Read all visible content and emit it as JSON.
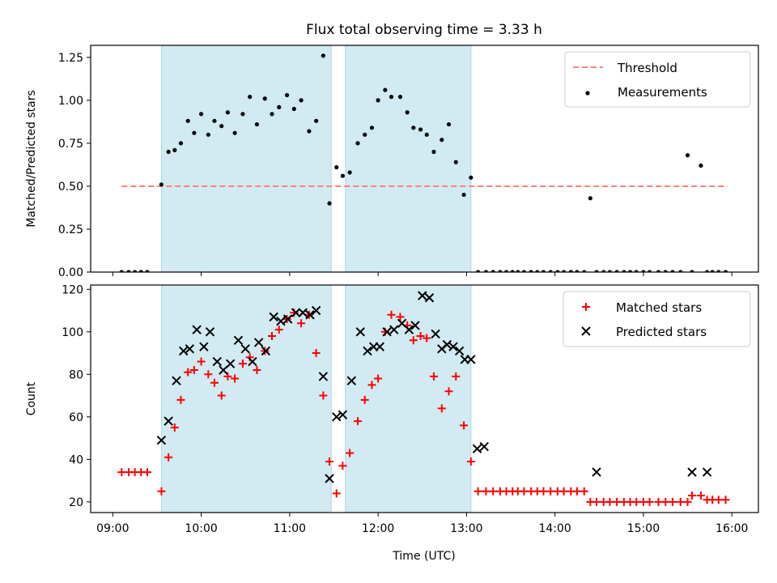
{
  "chart_data": {
    "title": "Flux total observing time = 3.33 h",
    "xlabel": "Time (UTC)",
    "x_unit": "hours UTC",
    "xlim": [
      8.75,
      16.3
    ],
    "xticks": [
      9,
      10,
      11,
      12,
      13,
      14,
      15,
      16
    ],
    "xtick_labels": [
      "09:00",
      "10:00",
      "11:00",
      "12:00",
      "13:00",
      "14:00",
      "15:00",
      "16:00"
    ],
    "shaded_intervals": [
      [
        9.55,
        11.47
      ],
      [
        11.63,
        13.05
      ]
    ],
    "shade_color": "#add8e6",
    "panels": [
      {
        "type": "scatter",
        "ylabel": "Matched/Predicted stars",
        "ylim": [
          0.0,
          1.32
        ],
        "yticks": [
          0.0,
          0.25,
          0.5,
          0.75,
          1.0,
          1.25
        ],
        "ytick_labels": [
          "0.00",
          "0.25",
          "0.50",
          "0.75",
          "1.00",
          "1.25"
        ],
        "legend_position": "upper-right",
        "threshold": {
          "name": "Threshold",
          "value": 0.5,
          "x_range": [
            9.1,
            15.95
          ],
          "color": "#ff7f7f",
          "style": "dashed"
        },
        "series": [
          {
            "name": "Measurements",
            "marker": "dot",
            "color": "#000000",
            "x": [
              9.1,
              9.18,
              9.25,
              9.32,
              9.39,
              9.55,
              9.63,
              9.7,
              9.77,
              9.85,
              9.92,
              10.0,
              10.08,
              10.15,
              10.23,
              10.3,
              10.38,
              10.47,
              10.55,
              10.63,
              10.72,
              10.8,
              10.88,
              10.97,
              11.05,
              11.13,
              11.22,
              11.3,
              11.38,
              11.45,
              11.53,
              11.6,
              11.68,
              11.77,
              11.85,
              11.93,
              12.0,
              12.08,
              12.15,
              12.25,
              12.33,
              12.4,
              12.48,
              12.55,
              12.63,
              12.72,
              12.8,
              12.88,
              12.97,
              13.05,
              13.13,
              13.22,
              13.3,
              13.38,
              13.45,
              13.52,
              13.58,
              13.65,
              13.73,
              13.8,
              13.87,
              13.95,
              14.03,
              14.1,
              14.18,
              14.25,
              14.33,
              14.4,
              14.47,
              14.55,
              14.62,
              14.7,
              14.78,
              14.85,
              14.92,
              15.0,
              15.07,
              15.17,
              15.25,
              15.33,
              15.42,
              15.5,
              15.55,
              15.65,
              15.72,
              15.78,
              15.85,
              15.93
            ],
            "y": [
              0,
              0,
              0,
              0,
              0,
              0.51,
              0.7,
              0.71,
              0.75,
              0.88,
              0.81,
              0.92,
              0.8,
              0.88,
              0.85,
              0.93,
              0.81,
              0.92,
              1.02,
              0.86,
              1.01,
              0.92,
              0.96,
              1.03,
              0.95,
              1.0,
              0.82,
              0.88,
              1.26,
              0.4,
              0.61,
              0.56,
              0.58,
              0.75,
              0.8,
              0.84,
              1.0,
              1.06,
              1.02,
              1.02,
              0.93,
              0.84,
              0.83,
              0.8,
              0.7,
              0.77,
              0.86,
              0.64,
              0.45,
              0.55,
              0,
              0,
              0,
              0,
              0,
              0,
              0,
              0,
              0,
              0,
              0,
              0,
              0,
              0,
              0,
              0,
              0,
              0.43,
              0,
              0,
              0,
              0,
              0,
              0,
              0,
              0,
              0,
              0,
              0,
              0,
              0,
              0.68,
              0,
              0.62,
              0,
              0,
              0,
              0
            ]
          }
        ]
      },
      {
        "type": "scatter",
        "ylabel": "Count",
        "ylim": [
          15,
          122
        ],
        "yticks": [
          20,
          40,
          60,
          80,
          100,
          120
        ],
        "ytick_labels": [
          "20",
          "40",
          "60",
          "80",
          "100",
          "120"
        ],
        "legend_position": "upper-right",
        "series": [
          {
            "name": "Matched stars",
            "marker": "plus",
            "color": "#ff0000",
            "x": [
              9.1,
              9.18,
              9.25,
              9.32,
              9.39,
              9.55,
              9.63,
              9.7,
              9.77,
              9.85,
              9.92,
              10.0,
              10.08,
              10.15,
              10.23,
              10.3,
              10.38,
              10.47,
              10.55,
              10.63,
              10.72,
              10.8,
              10.88,
              10.97,
              11.05,
              11.13,
              11.22,
              11.3,
              11.38,
              11.45,
              11.53,
              11.6,
              11.68,
              11.77,
              11.85,
              11.93,
              12.0,
              12.08,
              12.15,
              12.25,
              12.33,
              12.4,
              12.48,
              12.55,
              12.63,
              12.72,
              12.8,
              12.88,
              12.97,
              13.05,
              13.13,
              13.22,
              13.3,
              13.38,
              13.45,
              13.52,
              13.58,
              13.65,
              13.73,
              13.8,
              13.87,
              13.95,
              14.03,
              14.1,
              14.18,
              14.25,
              14.33,
              14.4,
              14.47,
              14.55,
              14.62,
              14.7,
              14.78,
              14.85,
              14.92,
              15.0,
              15.07,
              15.17,
              15.25,
              15.33,
              15.42,
              15.5,
              15.55,
              15.65,
              15.72,
              15.78,
              15.85,
              15.93
            ],
            "y": [
              34,
              34,
              34,
              34,
              34,
              25,
              41,
              55,
              68,
              81,
              82,
              86,
              80,
              76,
              70,
              79,
              78,
              85,
              88,
              82,
              91,
              98,
              101,
              106,
              109,
              104,
              108,
              90,
              70,
              39,
              24,
              37,
              43,
              58,
              68,
              75,
              78,
              100,
              108,
              107,
              103,
              96,
              98,
              97,
              79,
              64,
              72,
              79,
              56,
              39,
              25,
              25,
              25,
              25,
              25,
              25,
              25,
              25,
              25,
              25,
              25,
              25,
              25,
              25,
              25,
              25,
              25,
              20,
              20,
              20,
              20,
              20,
              20,
              20,
              20,
              20,
              20,
              20,
              20,
              20,
              20,
              20,
              23,
              23,
              21,
              21,
              21,
              21
            ]
          },
          {
            "name": "Predicted stars",
            "marker": "x",
            "color": "#000000",
            "x": [
              9.55,
              9.63,
              9.72,
              9.8,
              9.87,
              9.95,
              10.03,
              10.1,
              10.18,
              10.25,
              10.33,
              10.42,
              10.5,
              10.58,
              10.65,
              10.73,
              10.82,
              10.9,
              10.98,
              11.07,
              11.15,
              11.23,
              11.3,
              11.38,
              11.45,
              11.53,
              11.6,
              11.7,
              11.8,
              11.88,
              11.95,
              12.02,
              12.1,
              12.18,
              12.27,
              12.35,
              12.42,
              12.5,
              12.58,
              12.65,
              12.72,
              12.78,
              12.85,
              12.92,
              12.98,
              13.05,
              13.12,
              13.2,
              14.47,
              15.55,
              15.72
            ],
            "y": [
              49,
              58,
              77,
              91,
              92,
              101,
              93,
              100,
              86,
              82,
              85,
              96,
              92,
              86,
              95,
              91,
              107,
              105,
              106,
              109,
              109,
              108,
              110,
              79,
              31,
              60,
              61,
              77,
              100,
              91,
              93,
              93,
              100,
              101,
              104,
              101,
              103,
              117,
              116,
              99,
              92,
              94,
              93,
              91,
              87,
              87,
              45,
              46,
              34,
              34,
              34
            ]
          }
        ]
      }
    ]
  }
}
